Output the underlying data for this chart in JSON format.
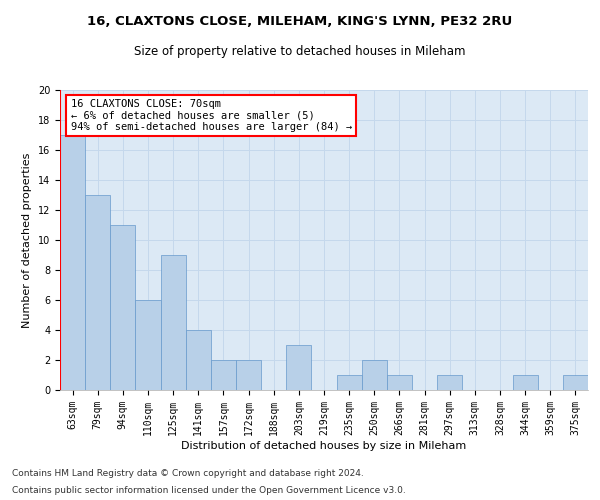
{
  "title1": "16, CLAXTONS CLOSE, MILEHAM, KING'S LYNN, PE32 2RU",
  "title2": "Size of property relative to detached houses in Mileham",
  "xlabel": "Distribution of detached houses by size in Mileham",
  "ylabel": "Number of detached properties",
  "categories": [
    "63sqm",
    "79sqm",
    "94sqm",
    "110sqm",
    "125sqm",
    "141sqm",
    "157sqm",
    "172sqm",
    "188sqm",
    "203sqm",
    "219sqm",
    "235sqm",
    "250sqm",
    "266sqm",
    "281sqm",
    "297sqm",
    "313sqm",
    "328sqm",
    "344sqm",
    "359sqm",
    "375sqm"
  ],
  "values": [
    17,
    13,
    11,
    6,
    9,
    4,
    2,
    2,
    0,
    3,
    0,
    1,
    2,
    1,
    0,
    1,
    0,
    0,
    1,
    0,
    1
  ],
  "bar_color": "#b8d0e8",
  "bar_edge_color": "#6699cc",
  "annotation_line1": "16 CLAXTONS CLOSE: 70sqm",
  "annotation_line2": "← 6% of detached houses are smaller (5)",
  "annotation_line3": "94% of semi-detached houses are larger (84) →",
  "annotation_box_color": "white",
  "annotation_box_edge_color": "red",
  "property_line_color": "red",
  "grid_color": "#c5d8ec",
  "bg_color": "#dce9f5",
  "footer1": "Contains HM Land Registry data © Crown copyright and database right 2024.",
  "footer2": "Contains public sector information licensed under the Open Government Licence v3.0.",
  "ylim": [
    0,
    20
  ],
  "yticks": [
    0,
    2,
    4,
    6,
    8,
    10,
    12,
    14,
    16,
    18,
    20
  ],
  "title1_fontsize": 9.5,
  "title2_fontsize": 8.5,
  "xlabel_fontsize": 8,
  "ylabel_fontsize": 8,
  "tick_fontsize": 7,
  "annotation_fontsize": 7.5,
  "footer_fontsize": 6.5
}
